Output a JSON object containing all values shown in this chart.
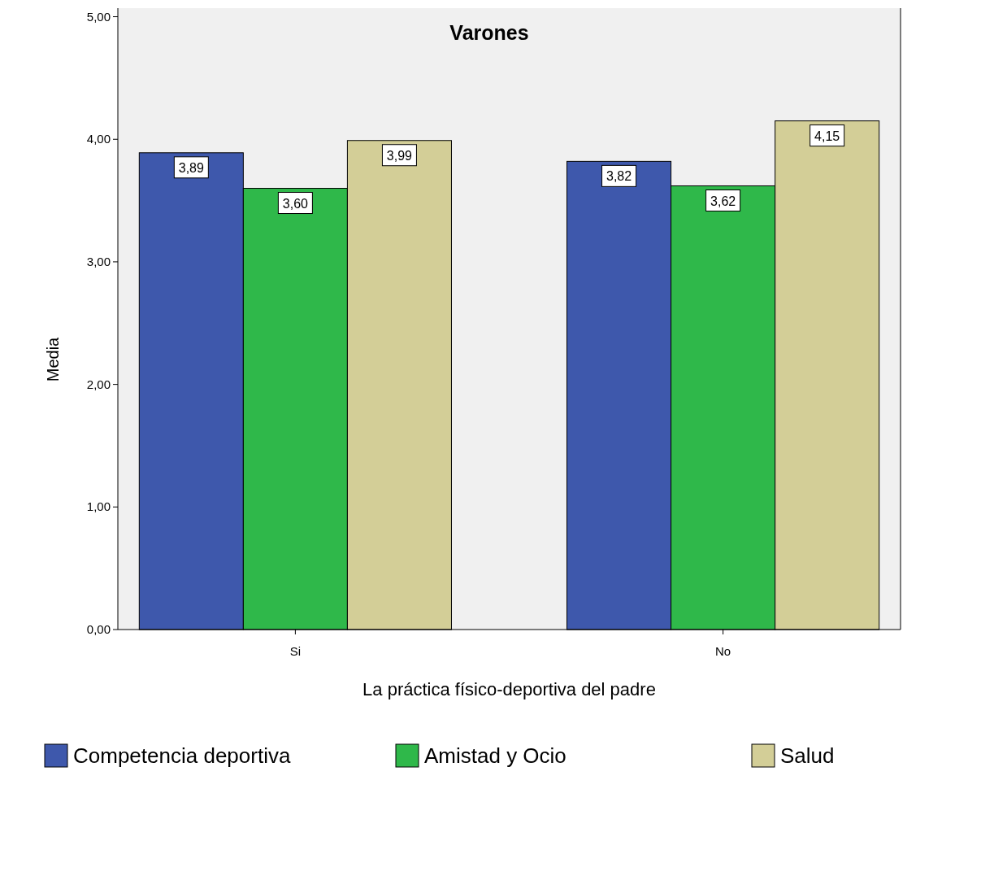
{
  "chart_data": {
    "type": "bar",
    "title": "Varones",
    "xlabel": "La práctica físico-deportiva del padre",
    "ylabel": "Media",
    "categories": [
      "Si",
      "No"
    ],
    "series": [
      {
        "name": "Competencia deportiva",
        "color": "#3e58ac",
        "values": [
          3.89,
          3.82
        ],
        "value_labels": [
          "3,89",
          "3,82"
        ]
      },
      {
        "name": "Amistad y Ocio",
        "color": "#2fb84a",
        "values": [
          3.6,
          3.62
        ],
        "value_labels": [
          "3,60",
          "3,62"
        ]
      },
      {
        "name": "Salud",
        "color": "#d3ce97",
        "values": [
          3.99,
          4.15
        ],
        "value_labels": [
          "3,99",
          "4,15"
        ]
      }
    ],
    "ylim": [
      0,
      5.07
    ],
    "yticks": [
      {
        "value": 0,
        "label": "0,00"
      },
      {
        "value": 1,
        "label": "1,00"
      },
      {
        "value": 2,
        "label": "2,00"
      },
      {
        "value": 3,
        "label": "3,00"
      },
      {
        "value": 4,
        "label": "4,00"
      },
      {
        "value": 5,
        "label": "5,00"
      }
    ],
    "grid": false,
    "legend": "bottom"
  }
}
